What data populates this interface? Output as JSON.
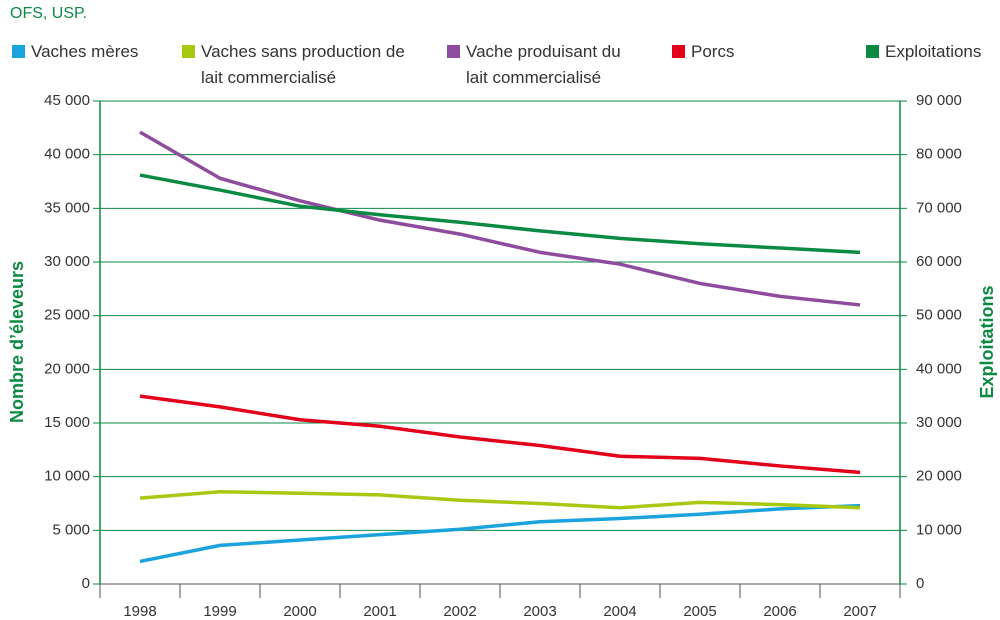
{
  "chart_data": {
    "type": "line",
    "source": "OFS, USP.",
    "y_label": "Nombre d’éleveurs",
    "y2_label": "Exploitations",
    "categories": [
      "1998",
      "1999",
      "2000",
      "2001",
      "2002",
      "2003",
      "2004",
      "2005",
      "2006",
      "2007"
    ],
    "series": [
      {
        "name": "Vaches mères",
        "color": "#1aa3dc",
        "values": [
          2100,
          3600,
          4100,
          4600,
          5100,
          5800,
          6100,
          6500,
          7000,
          7300
        ]
      },
      {
        "name": "Vaches sans production de lait commercialisé",
        "color": "#a8c912",
        "values": [
          8000,
          8600,
          8450,
          8300,
          7800,
          7500,
          7100,
          7600,
          7400,
          7100
        ]
      },
      {
        "name": "Vache produisant du lait commercialisé",
        "color": "#8e4c9e",
        "values": [
          42100,
          37800,
          35700,
          33900,
          32600,
          30900,
          29800,
          28000,
          26800,
          26000
        ]
      },
      {
        "name": "Porcs",
        "color": "#e2001a",
        "values": [
          17500,
          16500,
          15300,
          14700,
          13700,
          12900,
          11900,
          11700,
          11000,
          10400
        ]
      },
      {
        "name": "Exploitations",
        "color": "#0b8a43",
        "axis": "y2",
        "values": [
          76200,
          73400,
          70400,
          68800,
          67400,
          65800,
          64400,
          63400,
          62600,
          61800
        ]
      }
    ],
    "ylim": [
      0,
      45000
    ],
    "yticks": [
      0,
      {
        "value": 5000,
        "label": "5 000"
      },
      {
        "value": 10000,
        "label": "10 000"
      },
      {
        "value": 15000,
        "label": "15 000"
      },
      {
        "value": 20000,
        "label": "20 000"
      },
      {
        "value": 25000,
        "label": "25 000"
      },
      {
        "value": 30000,
        "label": "30 000"
      },
      {
        "value": 35000,
        "label": "35 000"
      },
      {
        "value": 40000,
        "label": "40 000"
      },
      {
        "value": 45000,
        "label": "45 000"
      }
    ],
    "y2lim": [
      0,
      90000
    ],
    "y2ticks": [
      0,
      {
        "value": 10000,
        "label": "10 000"
      },
      {
        "value": 20000,
        "label": "20 000"
      },
      {
        "value": 30000,
        "label": "30 000"
      },
      {
        "value": 40000,
        "label": "40 000"
      },
      {
        "value": 50000,
        "label": "50 000"
      },
      {
        "value": 60000,
        "label": "60 000"
      },
      {
        "value": 70000,
        "label": "70 000"
      },
      {
        "value": 80000,
        "label": "80 000"
      },
      {
        "value": 90000,
        "label": "90 000"
      }
    ],
    "grid": true,
    "axis_color": "#0b8a43"
  }
}
